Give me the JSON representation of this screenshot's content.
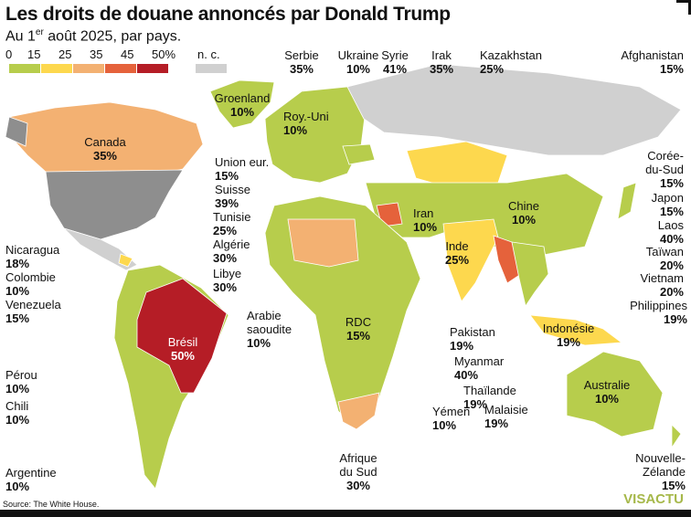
{
  "title": "Les droits de douane annoncés par Donald Trump",
  "subtitle_pre": "Au 1",
  "subtitle_sup": "er",
  "subtitle_post": " août 2025, par pays.",
  "legend": {
    "ticks": [
      "0",
      "15",
      "25",
      "35",
      "45",
      "50%"
    ],
    "na": "n. c.",
    "colors": [
      "#b7cd4c",
      "#fdd84e",
      "#f3b172",
      "#e5623b",
      "#b51d26"
    ],
    "na_color": "#d0d0d0",
    "usa_color": "#8e8e8e"
  },
  "countries": [
    {
      "name": "Groenland",
      "rate": "10%"
    },
    {
      "name": "Roy.-Uni",
      "rate": "10%"
    },
    {
      "name": "Canada",
      "rate": "35%"
    },
    {
      "name": "Serbie",
      "rate": "35%"
    },
    {
      "name": "Ukraine",
      "rate": "10%"
    },
    {
      "name": "Syrie",
      "rate": "41%"
    },
    {
      "name": "Irak",
      "rate": "35%"
    },
    {
      "name": "Kazakhstan",
      "rate": "25%"
    },
    {
      "name": "Afghanistan",
      "rate": "15%"
    },
    {
      "name": "Union eur.",
      "rate": "15%"
    },
    {
      "name": "Suisse",
      "rate": "39%"
    },
    {
      "name": "Tunisie",
      "rate": "25%"
    },
    {
      "name": "Algérie",
      "rate": "30%"
    },
    {
      "name": "Libye",
      "rate": "30%"
    },
    {
      "name": "Corée-\ndu-Sud",
      "rate": "15%"
    },
    {
      "name": "Japon",
      "rate": "15%"
    },
    {
      "name": "Laos",
      "rate": "40%"
    },
    {
      "name": "Taïwan",
      "rate": "20%"
    },
    {
      "name": "Vietnam",
      "rate": "20%"
    },
    {
      "name": "Philippines",
      "rate": "19%"
    },
    {
      "name": "Chine",
      "rate": "10%"
    },
    {
      "name": "Iran",
      "rate": "10%"
    },
    {
      "name": "Inde",
      "rate": "25%"
    },
    {
      "name": "Nicaragua",
      "rate": "18%"
    },
    {
      "name": "Colombie",
      "rate": "10%"
    },
    {
      "name": "Venezuela",
      "rate": "15%"
    },
    {
      "name": "Brésil",
      "rate": "50%"
    },
    {
      "name": "Pérou",
      "rate": "10%"
    },
    {
      "name": "Chili",
      "rate": "10%"
    },
    {
      "name": "Argentine",
      "rate": "10%"
    },
    {
      "name": "Arabie\nsaoudite",
      "rate": "10%"
    },
    {
      "name": "RDC",
      "rate": "15%"
    },
    {
      "name": "Pakistan",
      "rate": "19%"
    },
    {
      "name": "Indonésie",
      "rate": "19%"
    },
    {
      "name": "Myanmar",
      "rate": "40%"
    },
    {
      "name": "Thaïlande",
      "rate": "19%"
    },
    {
      "name": "Malaisie",
      "rate": "19%"
    },
    {
      "name": "Yémen",
      "rate": "10%"
    },
    {
      "name": "Australie",
      "rate": "10%"
    },
    {
      "name": "Afrique\ndu Sud",
      "rate": "30%"
    },
    {
      "name": "Nouvelle-\nZélande",
      "rate": "15%"
    }
  ],
  "source": "Source: The White House.",
  "logo": "VISACTU"
}
